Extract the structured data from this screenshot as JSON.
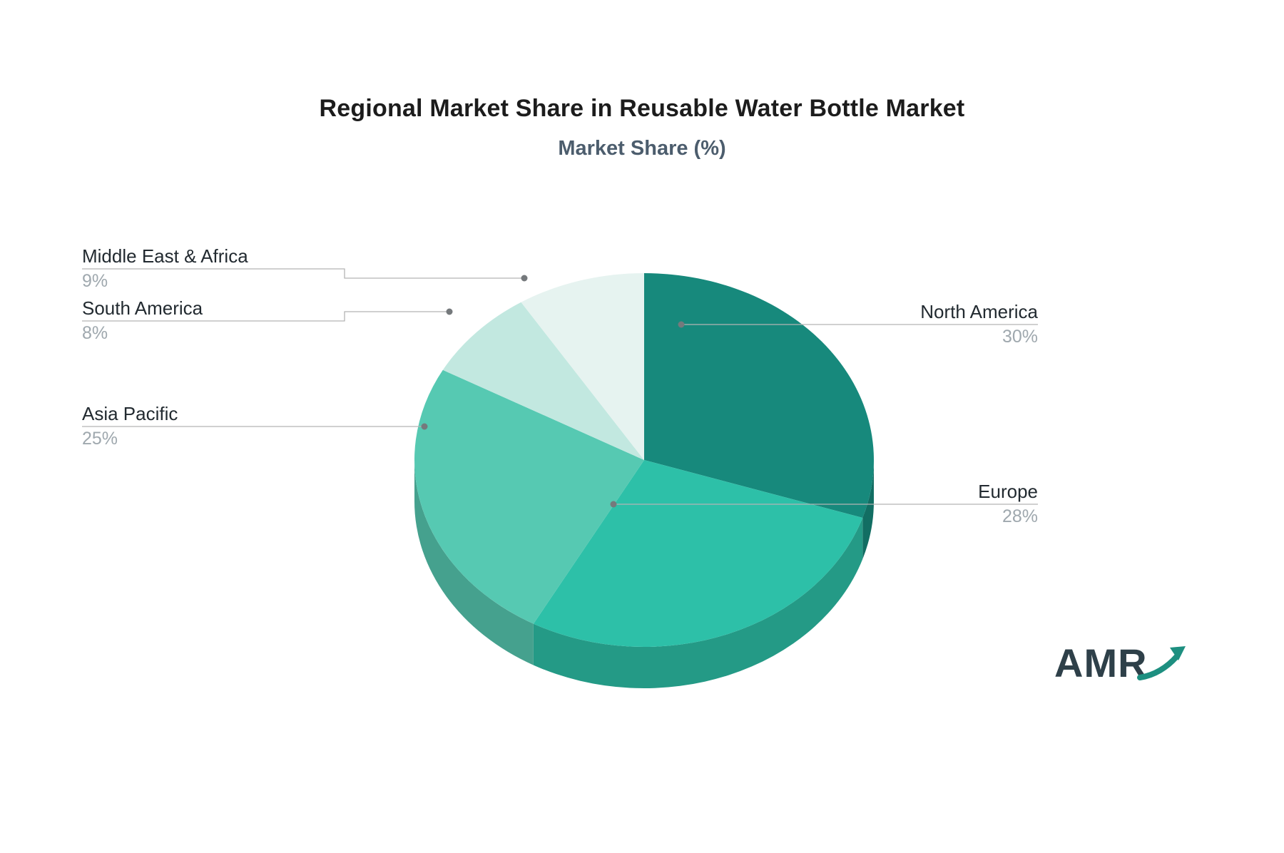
{
  "title": "Regional Market Share in Reusable Water Bottle Market",
  "subtitle": "Market Share (%)",
  "logo": {
    "text": "AMR",
    "accent_color": "#1d8f80",
    "text_color": "#2e4049"
  },
  "chart_data": {
    "type": "pie",
    "title": "Regional Market Share in Reusable Water Bottle Market",
    "subtitle": "Market Share (%)",
    "unit": "%",
    "start_angle_deg": 0,
    "direction": "clockwise",
    "effect": "3d-extruded",
    "legend": "none, external leader-line labels",
    "categories": [
      "North America",
      "Europe",
      "Asia Pacific",
      "South America",
      "Middle East & Africa"
    ],
    "values": [
      30,
      28,
      25,
      8,
      9
    ],
    "colors": [
      "#17897c",
      "#2dc0a8",
      "#56c9b2",
      "#c2e8e0",
      "#e6f3f0"
    ],
    "leader_line_color": "#b4b4b4",
    "dot_color": "#75797c",
    "labels": [
      {
        "name": "North America",
        "value": "30%"
      },
      {
        "name": "Europe",
        "value": "28%"
      },
      {
        "name": "Asia Pacific",
        "value": "25%"
      },
      {
        "name": "South America",
        "value": "8%"
      },
      {
        "name": "Middle East & Africa",
        "value": "9%"
      }
    ]
  }
}
